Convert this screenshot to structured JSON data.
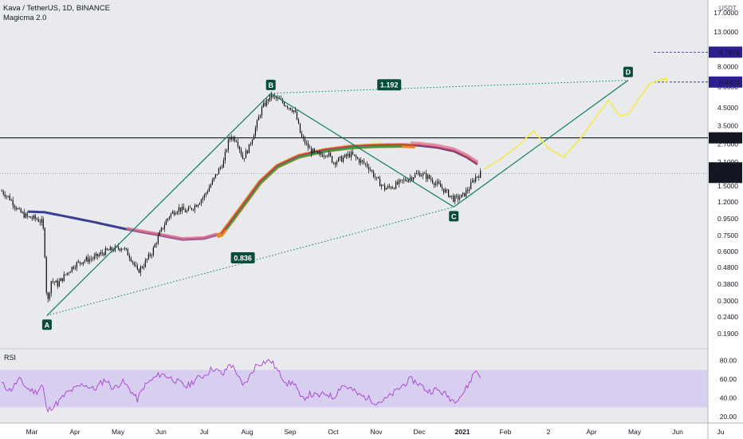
{
  "header": {
    "symbol": "Kava / TetherUS, 1D, BINANCE",
    "indicator": "Magicma 2.0",
    "rsi_label": "RSI"
  },
  "currency": "USDT",
  "colors": {
    "background": "#ffffff",
    "plot_bg": "#e9eaee",
    "rsi_band": "#d5c9ee",
    "candle": "#0c0c0c",
    "trend_lines": "#0e7a5a",
    "projection": "#f6e94b",
    "ma_blue": "#3c3f8f",
    "ma_red": "#b0375a",
    "ma_orange": "#e8882a",
    "ma_green": "#3f9b47",
    "rsi_line": "#a63fd4",
    "label_bg": "#0b4b3e",
    "price_tag_dark": "#131722",
    "price_tag_blue": "#2d1f8f"
  },
  "chart_data": [
    {
      "type": "candlestick",
      "title": "Kava / TetherUS, 1D, BINANCE",
      "y_scale": "log",
      "y_unit": "USDT",
      "y_ticks": [
        "0.1900",
        "0.2400",
        "0.3000",
        "0.3800",
        "0.4800",
        "0.6000",
        "0.7500",
        "0.9500",
        "1.2000",
        "1.5000",
        "2.1000",
        "2.7000",
        "3.5000",
        "4.5000",
        "6.0000",
        "8.0000",
        "13.0000",
        "17.0000"
      ],
      "y_tick_values": [
        0.19,
        0.24,
        0.3,
        0.38,
        0.48,
        0.6,
        0.75,
        0.95,
        1.2,
        1.5,
        2.1,
        2.7,
        3.5,
        4.5,
        6.0,
        8.0,
        13.0,
        17.0
      ],
      "x_ticks": [
        "Mar",
        "Apr",
        "May",
        "Jun",
        "Jul",
        "Aug",
        "Sep",
        "Oct",
        "Nov",
        "Dec",
        "2021",
        "Feb",
        "2",
        "Apr",
        "May",
        "Jun",
        "Ju"
      ],
      "x_tick_months": [
        0,
        1,
        2,
        3,
        4,
        5,
        6,
        7,
        8,
        9,
        10,
        11,
        12,
        13,
        14,
        15,
        16
      ],
      "current_price": "1.7914",
      "countdown": "07:19:05",
      "price_tags": [
        {
          "label": "9.7878",
          "value": 9.7878,
          "style": "blue"
        },
        {
          "label": "6.4410",
          "value": 6.441,
          "style": "blue"
        },
        {
          "label": "2.9487",
          "value": 2.9487,
          "style": "dark"
        }
      ],
      "horizontal_line": {
        "value": 2.9487
      },
      "pattern_points": [
        {
          "label": "A",
          "month": 0.35,
          "value": 0.245
        },
        {
          "label": "B",
          "month": 5.55,
          "value": 5.5
        },
        {
          "label": "C",
          "month": 9.8,
          "value": 1.12
        },
        {
          "label": "D",
          "month": 13.85,
          "value": 6.6
        }
      ],
      "ratio_labels": [
        {
          "label": "1.192",
          "month": 8.3,
          "value": 6.2
        },
        {
          "label": "0.836",
          "month": 4.9,
          "value": 0.55
        }
      ],
      "projection_path": [
        [
          10.5,
          1.9
        ],
        [
          10.9,
          2.2
        ],
        [
          11.3,
          2.65
        ],
        [
          11.65,
          3.25
        ],
        [
          12.0,
          2.55
        ],
        [
          12.35,
          2.25
        ],
        [
          12.75,
          2.95
        ],
        [
          13.15,
          4.1
        ],
        [
          13.4,
          5.0
        ],
        [
          13.65,
          4.0
        ],
        [
          13.85,
          4.1
        ],
        [
          14.15,
          5.3
        ],
        [
          14.35,
          6.3
        ],
        [
          14.55,
          6.6
        ],
        [
          14.75,
          6.8
        ]
      ],
      "ohlc_path": [
        [
          -0.7,
          1.4
        ],
        [
          -0.5,
          1.25
        ],
        [
          -0.3,
          1.05
        ],
        [
          -0.1,
          0.97
        ],
        [
          0.1,
          0.95
        ],
        [
          0.25,
          0.9
        ],
        [
          0.35,
          0.27
        ],
        [
          0.45,
          0.4
        ],
        [
          0.6,
          0.38
        ],
        [
          0.8,
          0.44
        ],
        [
          1.0,
          0.5
        ],
        [
          1.2,
          0.53
        ],
        [
          1.45,
          0.55
        ],
        [
          1.7,
          0.6
        ],
        [
          1.9,
          0.62
        ],
        [
          2.1,
          0.64
        ],
        [
          2.3,
          0.55
        ],
        [
          2.45,
          0.45
        ],
        [
          2.6,
          0.5
        ],
        [
          2.8,
          0.6
        ],
        [
          3.0,
          0.8
        ],
        [
          3.2,
          1.0
        ],
        [
          3.4,
          1.1
        ],
        [
          3.6,
          1.05
        ],
        [
          3.8,
          1.15
        ],
        [
          4.0,
          1.3
        ],
        [
          4.2,
          1.6
        ],
        [
          4.45,
          2.1
        ],
        [
          4.6,
          3.0
        ],
        [
          4.75,
          2.9
        ],
        [
          4.9,
          2.2
        ],
        [
          5.05,
          2.6
        ],
        [
          5.2,
          3.4
        ],
        [
          5.35,
          4.5
        ],
        [
          5.55,
          5.3
        ],
        [
          5.75,
          5.0
        ],
        [
          5.95,
          4.6
        ],
        [
          6.1,
          4.3
        ],
        [
          6.25,
          3.0
        ],
        [
          6.45,
          2.5
        ],
        [
          6.65,
          2.3
        ],
        [
          6.85,
          2.4
        ],
        [
          7.0,
          2.1
        ],
        [
          7.2,
          2.2
        ],
        [
          7.4,
          2.35
        ],
        [
          7.6,
          2.15
        ],
        [
          7.8,
          2.0
        ],
        [
          8.0,
          1.65
        ],
        [
          8.2,
          1.45
        ],
        [
          8.4,
          1.5
        ],
        [
          8.6,
          1.6
        ],
        [
          8.8,
          1.7
        ],
        [
          9.0,
          1.8
        ],
        [
          9.2,
          1.7
        ],
        [
          9.4,
          1.55
        ],
        [
          9.6,
          1.4
        ],
        [
          9.8,
          1.25
        ],
        [
          10.0,
          1.3
        ],
        [
          10.15,
          1.45
        ],
        [
          10.3,
          1.7
        ],
        [
          10.42,
          1.79
        ]
      ],
      "ma_path": [
        [
          -0.1,
          1.05
        ],
        [
          0.3,
          1.04
        ],
        [
          0.8,
          0.98
        ],
        [
          1.5,
          0.9
        ],
        [
          2.2,
          0.82
        ],
        [
          2.9,
          0.76
        ],
        [
          3.5,
          0.71
        ],
        [
          4.0,
          0.72
        ],
        [
          4.4,
          0.77
        ],
        [
          4.7,
          0.98
        ],
        [
          5.0,
          1.25
        ],
        [
          5.3,
          1.6
        ],
        [
          5.7,
          2.0
        ],
        [
          6.2,
          2.3
        ],
        [
          6.8,
          2.5
        ],
        [
          7.4,
          2.62
        ],
        [
          8.0,
          2.67
        ],
        [
          8.6,
          2.68
        ],
        [
          9.0,
          2.65
        ],
        [
          9.4,
          2.58
        ],
        [
          9.8,
          2.45
        ],
        [
          10.1,
          2.25
        ],
        [
          10.4,
          2.0
        ]
      ],
      "rsi": {
        "ylim": [
          15,
          90
        ],
        "y_ticks": [
          "80.00",
          "60.00",
          "40.00",
          "20.00"
        ],
        "y_tick_values": [
          80,
          60,
          40,
          20
        ],
        "band": [
          30,
          70
        ],
        "path": [
          [
            -0.7,
            55
          ],
          [
            -0.5,
            48
          ],
          [
            -0.3,
            60
          ],
          [
            -0.1,
            50
          ],
          [
            0.1,
            46
          ],
          [
            0.25,
            55
          ],
          [
            0.35,
            25
          ],
          [
            0.45,
            30
          ],
          [
            0.6,
            35
          ],
          [
            0.8,
            45
          ],
          [
            1.0,
            50
          ],
          [
            1.2,
            55
          ],
          [
            1.45,
            49
          ],
          [
            1.7,
            60
          ],
          [
            1.9,
            50
          ],
          [
            2.1,
            58
          ],
          [
            2.3,
            48
          ],
          [
            2.45,
            38
          ],
          [
            2.6,
            52
          ],
          [
            2.8,
            60
          ],
          [
            3.0,
            66
          ],
          [
            3.2,
            62
          ],
          [
            3.4,
            57
          ],
          [
            3.6,
            52
          ],
          [
            3.8,
            60
          ],
          [
            4.0,
            64
          ],
          [
            4.2,
            72
          ],
          [
            4.45,
            65
          ],
          [
            4.6,
            77
          ],
          [
            4.75,
            68
          ],
          [
            4.9,
            52
          ],
          [
            5.05,
            62
          ],
          [
            5.2,
            75
          ],
          [
            5.35,
            78
          ],
          [
            5.55,
            80
          ],
          [
            5.75,
            66
          ],
          [
            5.95,
            55
          ],
          [
            6.1,
            57
          ],
          [
            6.25,
            38
          ],
          [
            6.45,
            44
          ],
          [
            6.65,
            42
          ],
          [
            6.85,
            45
          ],
          [
            7.0,
            40
          ],
          [
            7.2,
            54
          ],
          [
            7.4,
            50
          ],
          [
            7.6,
            43
          ],
          [
            7.8,
            40
          ],
          [
            8.0,
            35
          ],
          [
            8.2,
            38
          ],
          [
            8.4,
            45
          ],
          [
            8.6,
            53
          ],
          [
            8.8,
            60
          ],
          [
            9.0,
            55
          ],
          [
            9.2,
            47
          ],
          [
            9.4,
            49
          ],
          [
            9.6,
            44
          ],
          [
            9.8,
            37
          ],
          [
            10.0,
            44
          ],
          [
            10.15,
            55
          ],
          [
            10.3,
            70
          ],
          [
            10.42,
            64
          ]
        ]
      }
    }
  ]
}
